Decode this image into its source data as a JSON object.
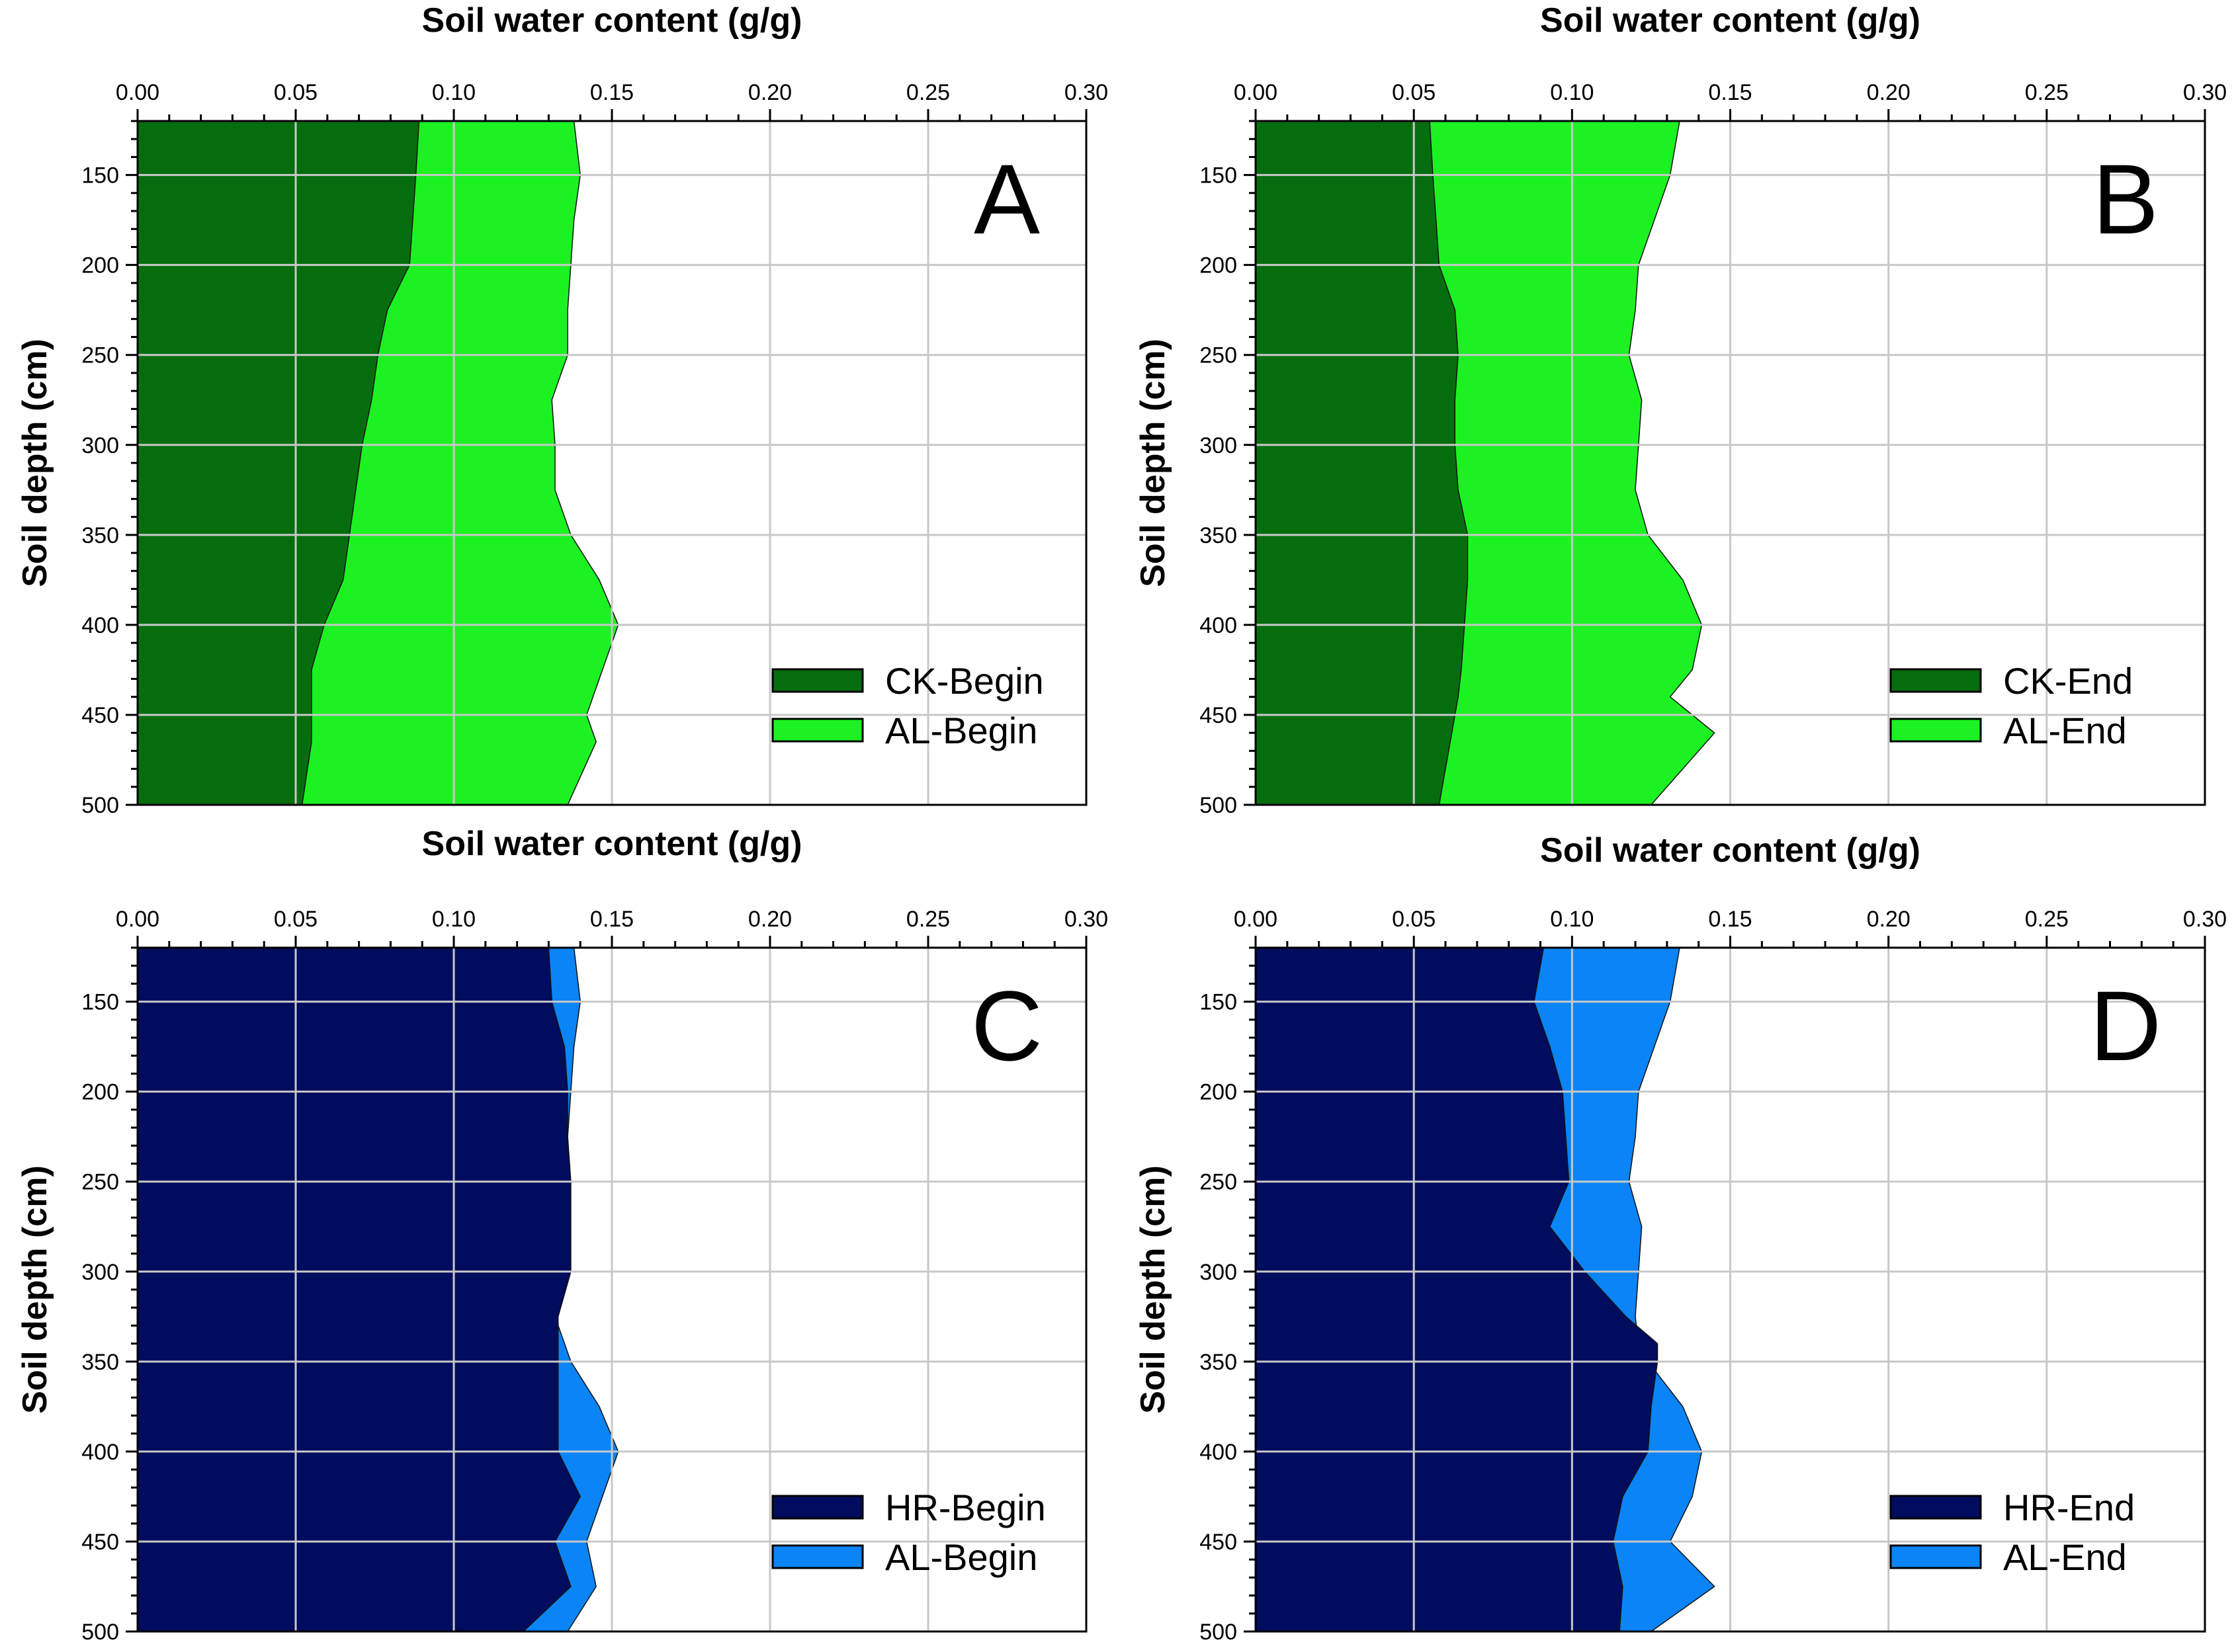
{
  "figure": {
    "colors": {
      "ck": "#066d0f",
      "al_green": "#1cf222",
      "hr": "#000c5e",
      "al_blue": "#0a84f7",
      "grid": "#c8c8c8",
      "background": "#ffffff"
    }
  },
  "chart_data": [
    {
      "type": "area",
      "panel": "A",
      "title": "Soil water content (g/g)",
      "xlabel": "Soil water content (g/g)",
      "ylabel": "Soil depth (cm)",
      "xlim": [
        0,
        0.3
      ],
      "ylim": [
        500,
        120
      ],
      "x_ticks": [
        "0.00",
        "0.05",
        "0.10",
        "0.15",
        "0.20",
        "0.25",
        "0.30"
      ],
      "y_ticks": [
        "150",
        "200",
        "250",
        "300",
        "350",
        "400",
        "450",
        "500"
      ],
      "grid": true,
      "legend_position": "bottom-right",
      "depth": [
        120,
        150,
        175,
        200,
        225,
        250,
        275,
        300,
        325,
        350,
        375,
        400,
        425,
        450,
        465,
        500
      ],
      "series": [
        {
          "name": "CK-Begin",
          "key": "ck",
          "values": [
            0.089,
            0.088,
            0.087,
            0.086,
            0.079,
            0.076,
            0.074,
            0.071,
            0.069,
            0.067,
            0.065,
            0.059,
            0.055,
            0.055,
            0.055,
            0.052
          ]
        },
        {
          "name": "AL-Begin",
          "key": "al_green",
          "values": [
            0.138,
            0.14,
            0.138,
            0.137,
            0.136,
            0.136,
            0.131,
            0.132,
            0.132,
            0.137,
            0.146,
            0.152,
            0.147,
            0.142,
            0.145,
            0.136
          ]
        }
      ]
    },
    {
      "type": "area",
      "panel": "B",
      "title": "Soil water content (g/g)",
      "xlabel": "Soil water content (g/g)",
      "ylabel": "Soil depth (cm)",
      "xlim": [
        0,
        0.3
      ],
      "ylim": [
        500,
        120
      ],
      "x_ticks": [
        "0.00",
        "0.05",
        "0.10",
        "0.15",
        "0.20",
        "0.25",
        "0.30"
      ],
      "y_ticks": [
        "150",
        "200",
        "250",
        "300",
        "350",
        "400",
        "450",
        "500"
      ],
      "grid": true,
      "legend_position": "bottom-right",
      "depth": [
        120,
        150,
        175,
        200,
        225,
        250,
        275,
        300,
        325,
        350,
        375,
        400,
        425,
        440,
        460,
        500
      ],
      "series": [
        {
          "name": "CK-End",
          "key": "ck",
          "values": [
            0.055,
            0.056,
            0.057,
            0.058,
            0.063,
            0.064,
            0.063,
            0.063,
            0.064,
            0.067,
            0.067,
            0.066,
            0.065,
            0.064,
            0.062,
            0.058
          ]
        },
        {
          "name": "AL-End",
          "key": "al_green",
          "values": [
            0.134,
            0.131,
            0.126,
            0.121,
            0.12,
            0.118,
            0.122,
            0.121,
            0.12,
            0.124,
            0.135,
            0.141,
            0.138,
            0.131,
            0.145,
            0.125
          ]
        }
      ]
    },
    {
      "type": "area",
      "panel": "C",
      "title": "Soil water content (g/g)",
      "xlabel": "Soil water content (g/g)",
      "ylabel": "Soil depth (cm)",
      "xlim": [
        0,
        0.3
      ],
      "ylim": [
        500,
        120
      ],
      "x_ticks": [
        "0.00",
        "0.05",
        "0.10",
        "0.15",
        "0.20",
        "0.25",
        "0.30"
      ],
      "y_ticks": [
        "150",
        "200",
        "250",
        "300",
        "350",
        "400",
        "450",
        "500"
      ],
      "grid": true,
      "legend_position": "bottom-right",
      "depth": [
        120,
        150,
        175,
        200,
        225,
        250,
        275,
        300,
        325,
        350,
        375,
        400,
        425,
        450,
        475,
        500
      ],
      "series": [
        {
          "name": "HR-Begin",
          "key": "hr",
          "values": [
            0.13,
            0.131,
            0.135,
            0.136,
            0.136,
            0.137,
            0.137,
            0.137,
            0.133,
            0.133,
            0.133,
            0.133,
            0.14,
            0.132,
            0.137,
            0.122
          ]
        },
        {
          "name": "AL-Begin",
          "key": "al_blue",
          "values": [
            0.138,
            0.14,
            0.138,
            0.137,
            0.136,
            0.136,
            0.131,
            0.132,
            0.132,
            0.137,
            0.146,
            0.152,
            0.147,
            0.142,
            0.145,
            0.136
          ]
        }
      ]
    },
    {
      "type": "area",
      "panel": "D",
      "title": "Soil water content (g/g)",
      "xlabel": "Soil water content (g/g)",
      "ylabel": "Soil depth (cm)",
      "xlim": [
        0,
        0.3
      ],
      "ylim": [
        500,
        120
      ],
      "x_ticks": [
        "0.00",
        "0.05",
        "0.10",
        "0.15",
        "0.20",
        "0.25",
        "0.30"
      ],
      "y_ticks": [
        "150",
        "200",
        "250",
        "300",
        "350",
        "400",
        "450",
        "500"
      ],
      "grid": true,
      "legend_position": "bottom-right",
      "depth": [
        120,
        150,
        175,
        200,
        225,
        250,
        275,
        300,
        325,
        340,
        350,
        375,
        400,
        425,
        450,
        475,
        500
      ],
      "series": [
        {
          "name": "HR-End",
          "key": "hr",
          "values": [
            0.091,
            0.088,
            0.093,
            0.097,
            0.098,
            0.099,
            0.093,
            0.104,
            0.117,
            0.127,
            0.127,
            0.125,
            0.124,
            0.116,
            0.113,
            0.116,
            0.115
          ]
        },
        {
          "name": "AL-End",
          "key": "al_blue",
          "values": [
            0.134,
            0.131,
            0.126,
            0.121,
            0.12,
            0.118,
            0.122,
            0.121,
            0.12,
            0.121,
            0.124,
            0.135,
            0.141,
            0.138,
            0.131,
            0.145,
            0.125
          ]
        }
      ]
    }
  ]
}
